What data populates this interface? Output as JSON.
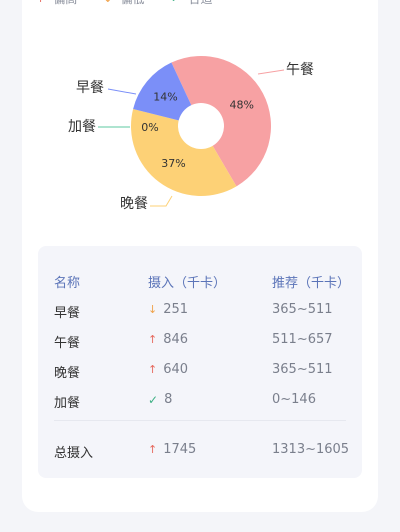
{
  "legend": [
    {
      "label": "偏高",
      "icon": "arrow-up-icon",
      "color": "#e66a5e"
    },
    {
      "label": "偏低",
      "icon": "arrow-down-icon",
      "color": "#f0a24a"
    },
    {
      "label": "合适",
      "icon": "check-icon",
      "color": "#3db084"
    }
  ],
  "chart_data": {
    "type": "pie",
    "donut": true,
    "slices": [
      {
        "name": "午餐",
        "percent": 48,
        "label": "48%",
        "color": "#f7a1a3"
      },
      {
        "name": "晚餐",
        "percent": 37,
        "label": "37%",
        "color": "#fdd176"
      },
      {
        "name": "加餐",
        "percent": 0,
        "label": "0%",
        "color": "#5ec9a2"
      },
      {
        "name": "早餐",
        "percent": 14,
        "label": "14%",
        "color": "#7b8ff8"
      }
    ]
  },
  "table": {
    "headers": {
      "name": "名称",
      "intake": "摄入（千卡）",
      "recommended": "推荐（千卡）"
    },
    "rows": [
      {
        "name": "早餐",
        "status": "low",
        "status_icon": "arrow-down-icon",
        "intake": "251",
        "recommended": "365~511"
      },
      {
        "name": "午餐",
        "status": "high",
        "status_icon": "arrow-up-icon",
        "intake": "846",
        "recommended": "511~657"
      },
      {
        "name": "晚餐",
        "status": "high",
        "status_icon": "arrow-up-icon",
        "intake": "640",
        "recommended": "365~511"
      },
      {
        "name": "加餐",
        "status": "ok",
        "status_icon": "check-icon",
        "intake": "8",
        "recommended": "0~146"
      }
    ],
    "total": {
      "name": "总摄入",
      "status": "high",
      "status_icon": "arrow-up-icon",
      "intake": "1745",
      "recommended": "1313~1605"
    }
  }
}
